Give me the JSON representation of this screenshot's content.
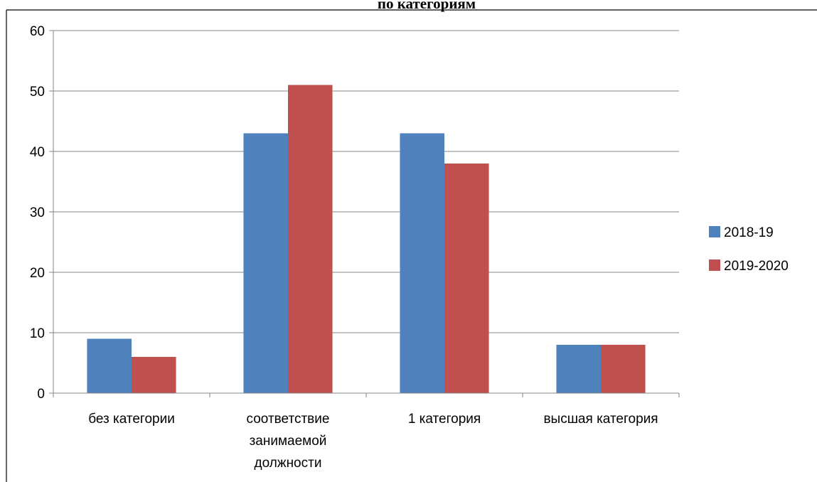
{
  "chart_data": {
    "type": "bar",
    "title": "по категориям",
    "categories": [
      [
        "без категории"
      ],
      [
        "соответствие",
        "занимаемой",
        "должности"
      ],
      [
        "1 категория"
      ],
      [
        "высшая категория"
      ]
    ],
    "series": [
      {
        "name": "2018-19",
        "values": [
          9,
          43,
          43,
          8
        ],
        "color": "#4F81BD"
      },
      {
        "name": "2019-2020",
        "values": [
          6,
          51,
          38,
          8
        ],
        "color": "#C0504D"
      }
    ],
    "ylim": [
      0,
      60
    ],
    "yticks": [
      0,
      10,
      20,
      30,
      40,
      50,
      60
    ],
    "grid": true,
    "legend_position": "right"
  }
}
